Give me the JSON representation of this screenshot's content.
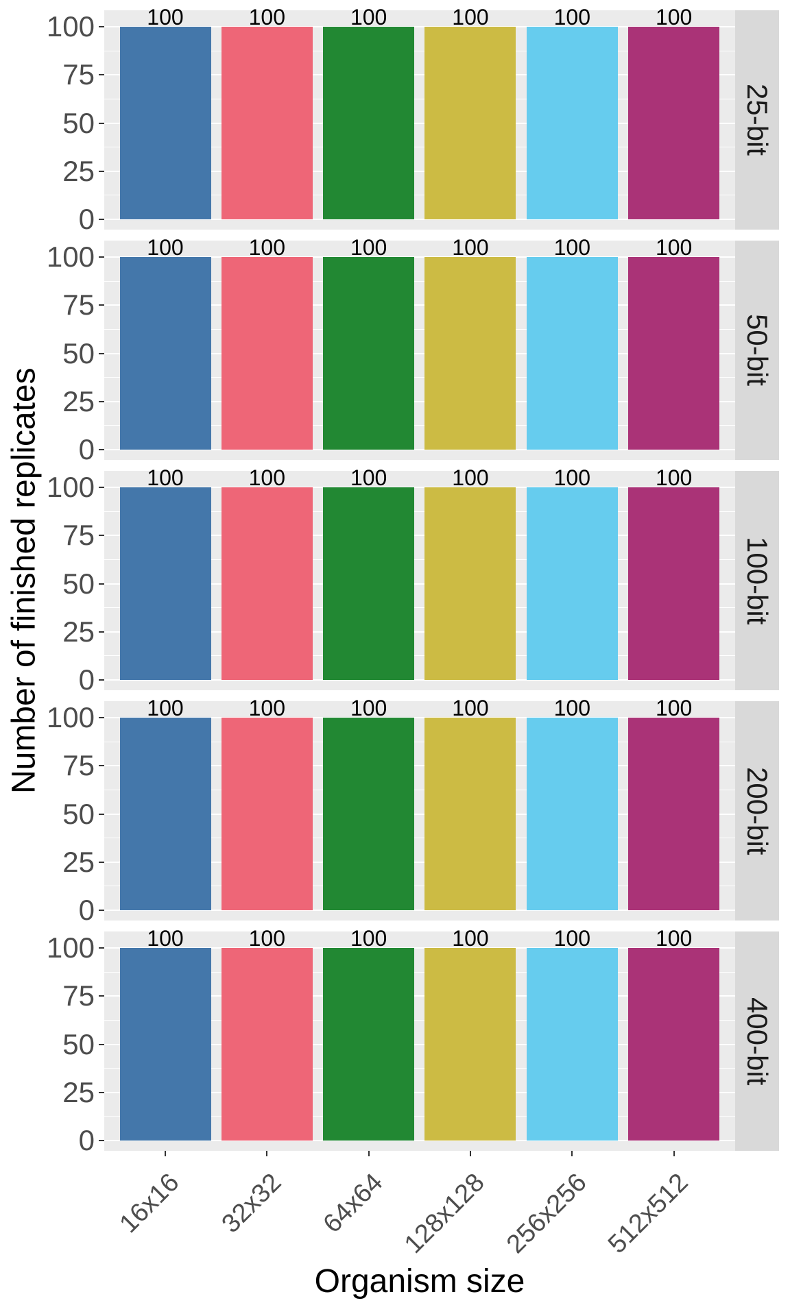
{
  "chart_data": {
    "type": "bar",
    "title": "",
    "xlabel": "Organism size",
    "ylabel": "Number of finished replicates",
    "categories": [
      "16x16",
      "32x32",
      "64x64",
      "128x128",
      "256x256",
      "512x512"
    ],
    "facets": [
      {
        "label": "25-bit",
        "values": [
          100,
          100,
          100,
          100,
          100,
          100
        ]
      },
      {
        "label": "50-bit",
        "values": [
          100,
          100,
          100,
          100,
          100,
          100
        ]
      },
      {
        "label": "100-bit",
        "values": [
          100,
          100,
          100,
          100,
          100,
          100
        ]
      },
      {
        "label": "200-bit",
        "values": [
          100,
          100,
          100,
          100,
          100,
          100
        ]
      },
      {
        "label": "400-bit",
        "values": [
          100,
          100,
          100,
          100,
          100,
          100
        ]
      }
    ],
    "value_labels_shown": true,
    "y_ticks": [
      0,
      25,
      50,
      75,
      100
    ],
    "y_minor_ticks": [
      12.5,
      37.5,
      62.5,
      87.5
    ],
    "ylim": [
      0,
      100
    ],
    "bar_colors": [
      "#4477AA",
      "#EE6677",
      "#228833",
      "#CCBB44",
      "#66CCEE",
      "#AA3377"
    ],
    "panel_bg": "#EBEBEB",
    "strip_bg": "#D9D9D9",
    "grid_color": "#FFFFFF",
    "axis_text_color": "#4D4D4D",
    "tick_mark_color": "#333333",
    "facet_position": "right",
    "legend_position": "none",
    "grid": "major+minor"
  }
}
